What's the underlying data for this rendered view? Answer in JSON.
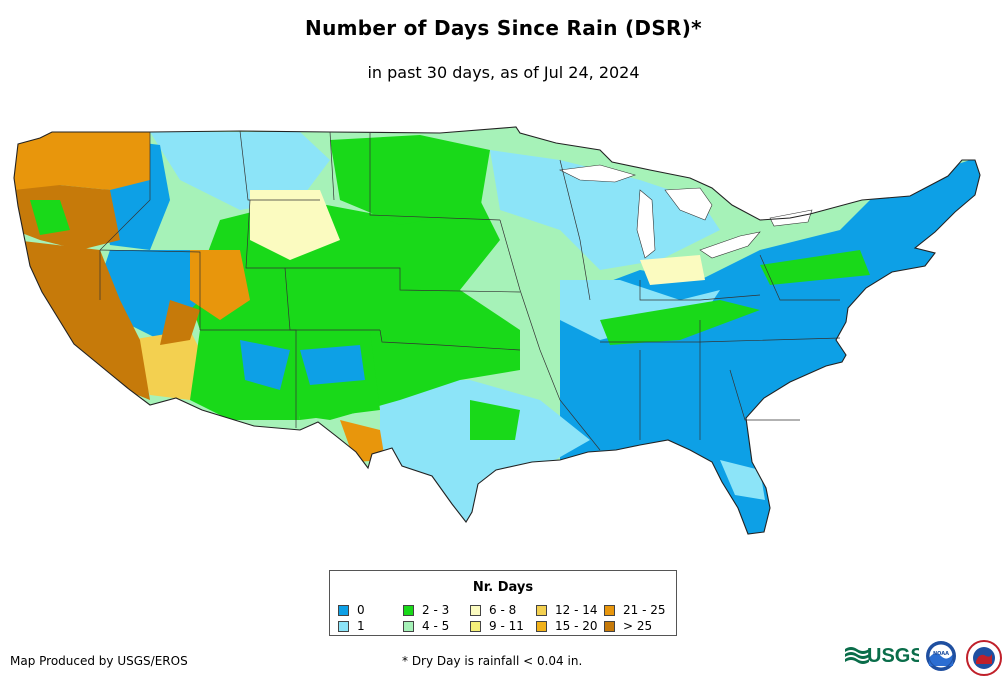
{
  "title": "Number of Days Since Rain (DSR)*",
  "subtitle": "in past 30 days, as of Jul 24, 2024",
  "map": {
    "region": "Contiguous United States",
    "dominant_categories": {
      "west_coast": "> 25",
      "pacific_northwest": "21 - 25",
      "southeast": "0",
      "great_plains": "2 - 3",
      "northeast": "0"
    }
  },
  "legend": {
    "title": "Nr. Days",
    "items": [
      {
        "label": "0",
        "color": "#0da0e6"
      },
      {
        "label": "1",
        "color": "#8ce4f8"
      },
      {
        "label": "2 - 3",
        "color": "#19d919"
      },
      {
        "label": "4 - 5",
        "color": "#a6f2b8"
      },
      {
        "label": "6 - 8",
        "color": "#fbfbc0"
      },
      {
        "label": "9 - 11",
        "color": "#f5f07a"
      },
      {
        "label": "12 - 14",
        "color": "#f3d050"
      },
      {
        "label": "15 - 20",
        "color": "#f2b21a"
      },
      {
        "label": "21 - 25",
        "color": "#e8960c"
      },
      {
        "label": "> 25",
        "color": "#c67a0a"
      }
    ]
  },
  "credit": "Map Produced by USGS/EROS",
  "footnote": "* Dry Day is rainfall < 0.04 in.",
  "logos": {
    "usgs": "USGS",
    "noaa": "NOAA"
  }
}
